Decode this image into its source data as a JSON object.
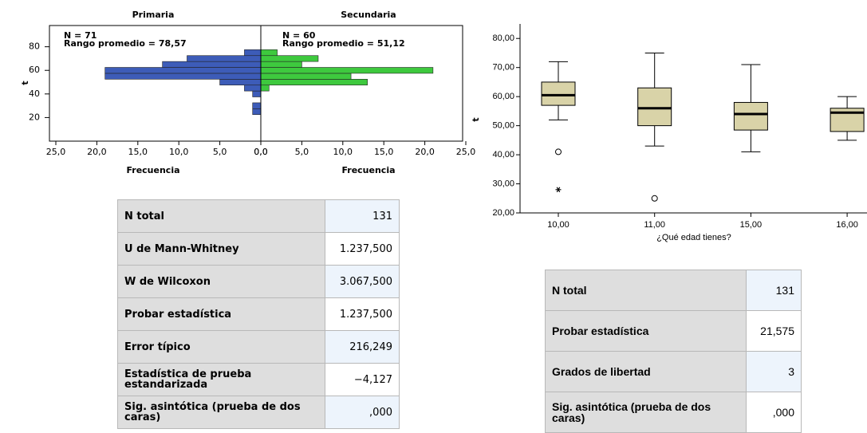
{
  "chart_data": [
    {
      "type": "histogram",
      "ylabel": "t",
      "xlabel": "Frecuencia",
      "bins": [
        22.5,
        27.5,
        32.5,
        37.5,
        42.5,
        47.5,
        52.5,
        57.5,
        62.5,
        67.5,
        72.5,
        77.5
      ],
      "series": [
        {
          "name": "Primaria",
          "color": "#3d5cb8",
          "values": [
            1,
            1,
            0,
            1,
            2,
            5,
            19,
            19,
            12,
            9,
            2
          ]
        },
        {
          "name": "Secundaria",
          "color": "#3ec93e",
          "values": [
            0,
            0,
            0,
            0,
            1,
            13,
            11,
            21,
            5,
            7,
            2
          ]
        }
      ],
      "annotations": [
        "N = 71",
        "Rango promedio = 78,57",
        "N = 60",
        "Rango promedio = 51,12"
      ],
      "xlim": [
        0,
        25
      ],
      "xticks": [
        {
          "value": 0,
          "label": "0,0"
        },
        {
          "value": 5,
          "label": "5,0"
        },
        {
          "value": 10,
          "label": "10,0"
        },
        {
          "value": 15,
          "label": "15,0"
        },
        {
          "value": 20,
          "label": "20,0"
        },
        {
          "value": 25,
          "label": "25,0"
        }
      ],
      "ylim": [
        0,
        98
      ],
      "yticks": [
        20,
        40,
        60,
        80
      ]
    },
    {
      "type": "box",
      "ylabel": "t",
      "xlabel": "¿Qué edad tienes?",
      "categories": [
        "10,00",
        "11,00",
        "15,00",
        "16,00"
      ],
      "color": "#d9d3a8",
      "whisker_low": [
        52,
        43,
        41,
        45
      ],
      "q1": [
        57,
        50,
        48.5,
        48
      ],
      "median": [
        60.5,
        56,
        54,
        54.5
      ],
      "q3": [
        65,
        63,
        58,
        56
      ],
      "whisker_high": [
        72,
        75,
        71,
        60
      ],
      "outliers": [
        [
          41
        ],
        [
          25
        ],
        [],
        []
      ],
      "extremes": [
        [
          28
        ],
        [],
        [],
        []
      ],
      "ylim": [
        20,
        85
      ],
      "yticks": [
        {
          "value": 20,
          "label": "20,00"
        },
        {
          "value": 30,
          "label": "30,00"
        },
        {
          "value": 40,
          "label": "40,00"
        },
        {
          "value": 50,
          "label": "50,00"
        },
        {
          "value": 60,
          "label": "60,00"
        },
        {
          "value": 70,
          "label": "70,00"
        },
        {
          "value": 80,
          "label": "80,00"
        }
      ]
    }
  ],
  "tables": [
    {
      "rows": [
        [
          "N total",
          "131"
        ],
        [
          "U de Mann-Whitney",
          "1.237,500"
        ],
        [
          "W de Wilcoxon",
          "3.067,500"
        ],
        [
          "Probar estadística",
          "1.237,500"
        ],
        [
          "Error típico",
          "216,249"
        ],
        [
          "Estadística de prueba estandarizada",
          "−4,127"
        ],
        [
          "Sig. asintótica (prueba de dos caras)",
          ",000"
        ]
      ]
    },
    {
      "rows": [
        [
          "N total",
          "131"
        ],
        [
          "Probar estadística",
          "21,575"
        ],
        [
          "Grados de libertad",
          "3"
        ],
        [
          "Sig. asintótica (prueba de dos caras)",
          ",000"
        ]
      ]
    }
  ]
}
